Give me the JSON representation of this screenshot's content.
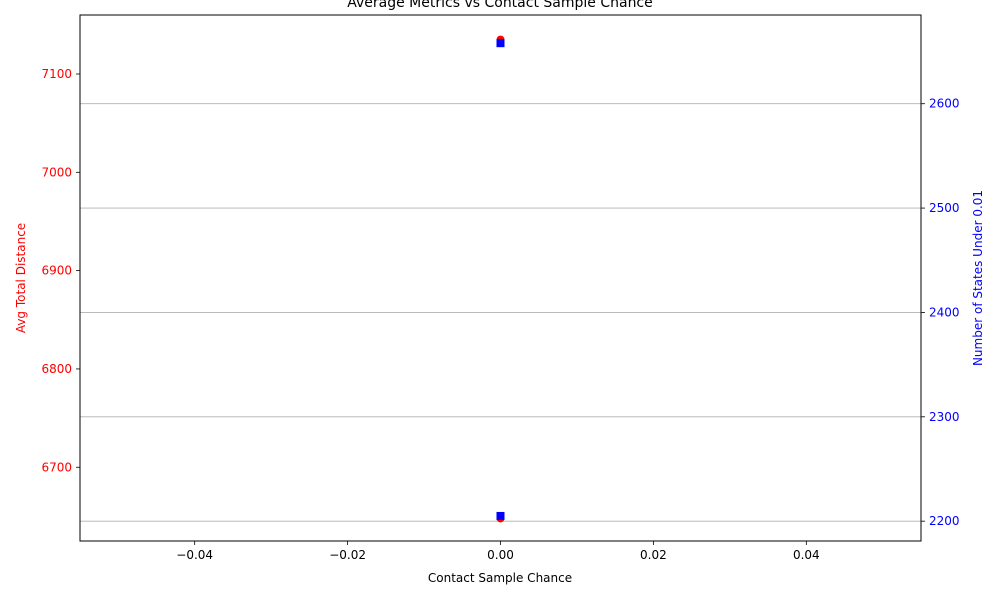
{
  "chart_data": {
    "type": "scatter",
    "title": "Average Metrics vs Contact Sample Chance",
    "xlabel": "Contact Sample Chance",
    "xlim": [
      -0.055,
      0.055
    ],
    "xticks": [
      -0.04,
      -0.02,
      0.0,
      0.02,
      0.04
    ],
    "xtick_labels": [
      "−0.04",
      "−0.02",
      "0.00",
      "0.02",
      "0.04"
    ],
    "y_left": {
      "label": "Avg Total Distance",
      "color": "#ff0000",
      "ylim": [
        6625,
        7160
      ],
      "ticks": [
        6700,
        6800,
        6900,
        7000,
        7100
      ],
      "tick_labels": [
        "6700",
        "6800",
        "6900",
        "7000",
        "7100"
      ]
    },
    "y_right": {
      "label": "Number of States Under 0.01",
      "color": "#0000ff",
      "ylim": [
        2181,
        2685
      ],
      "ticks": [
        2200,
        2300,
        2400,
        2500,
        2600
      ],
      "tick_labels": [
        "2200",
        "2300",
        "2400",
        "2500",
        "2600"
      ]
    },
    "grid": "horizontal-right-axis",
    "series": [
      {
        "axis": "left",
        "color": "#ff0000",
        "marker": "circle",
        "points": [
          [
            0.0,
            7135
          ],
          [
            0.0,
            6648
          ]
        ]
      },
      {
        "axis": "right",
        "color": "#0000ff",
        "marker": "square",
        "points": [
          [
            0.0,
            2658
          ],
          [
            0.0,
            2205
          ]
        ]
      }
    ]
  }
}
